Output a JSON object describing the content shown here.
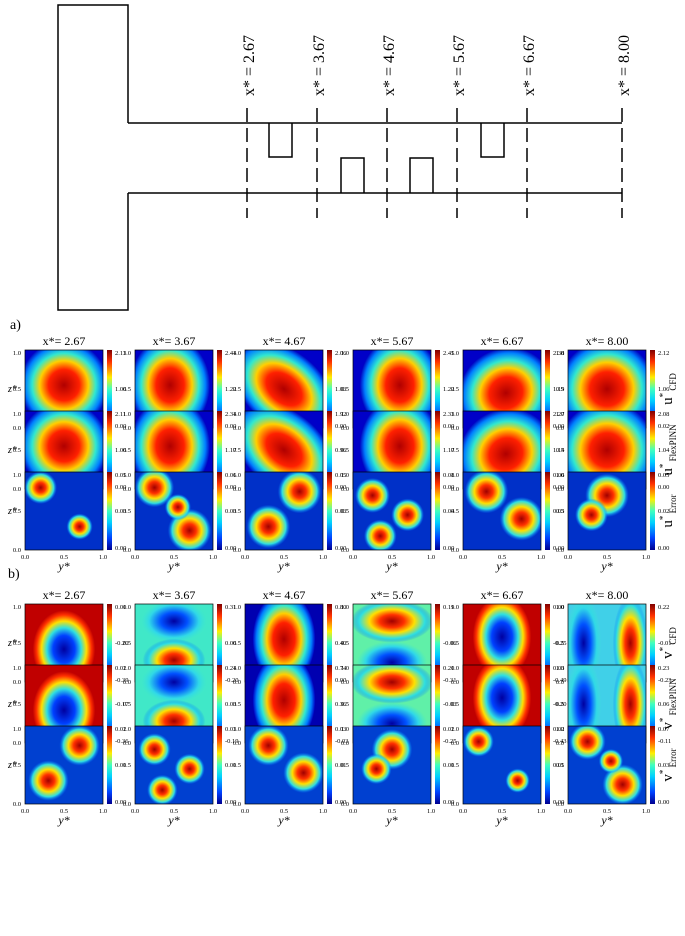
{
  "schematic": {
    "stations": [
      "x* = 2.67",
      "x* = 3.67",
      "x* = 4.67",
      "x* = 5.67",
      "x* = 6.67",
      "x* = 8.00"
    ]
  },
  "panels": {
    "a_label": "a)",
    "b_label": "b)"
  },
  "columns": [
    "x*= 2.67",
    "x*= 3.67",
    "x*= 4.67",
    "x*= 5.67",
    "x*= 6.67",
    "x*= 8.00"
  ],
  "axes": {
    "ylabel": "z*",
    "xlabel": "y*",
    "ticks": [
      "0.0",
      "0.5",
      "1.0"
    ]
  },
  "u_rows": [
    {
      "label": "u* CFD",
      "label_main": "u",
      "label_sub": "CFD",
      "scales": [
        [
          "2.13",
          "1.06",
          "0.00"
        ],
        [
          "2.44",
          "1.22",
          "0.00"
        ],
        [
          "2.06",
          "1.03",
          "0.00"
        ],
        [
          "2.45",
          "1.22",
          "0.00"
        ],
        [
          "2.38",
          "1.19",
          "0.00"
        ],
        [
          "2.12",
          "1.06",
          "0.02"
        ]
      ]
    },
    {
      "label": "u* FlexPINN",
      "label_main": "u",
      "label_sub": "FlexPINN",
      "scales": [
        [
          "2.11",
          "1.06",
          "0.00"
        ],
        [
          "2.34",
          "1.17",
          "0.00"
        ],
        [
          "1.92",
          "0.96",
          "0.00"
        ],
        [
          "2.33",
          "1.17",
          "0.00"
        ],
        [
          "2.27",
          "1.14",
          "0.00"
        ],
        [
          "2.08",
          "1.04",
          "0.00"
        ]
      ]
    },
    {
      "label": "u* Error",
      "label_main": "u",
      "label_sub": "Error",
      "scales": [
        [
          "0.05",
          "0.03",
          "0.00"
        ],
        [
          "0.06",
          "0.03",
          "0.00"
        ],
        [
          "0.05",
          "0.03",
          "0.00"
        ],
        [
          "0.08",
          "0.04",
          "0.00"
        ],
        [
          "0.06",
          "0.03",
          "0.00"
        ],
        [
          "0.05",
          "0.02",
          "0.00"
        ]
      ]
    }
  ],
  "v_rows": [
    {
      "label": "v* CFD",
      "label_main": "v",
      "label_sub": "CFD",
      "scales": [
        [
          "0.00",
          "-0.20",
          "-0.39"
        ],
        [
          "0.31",
          "0.06",
          "-0.20"
        ],
        [
          "0.80",
          "0.40",
          "0.00"
        ],
        [
          "0.19",
          "-0.06",
          "-0.31"
        ],
        [
          "0.00",
          "-0.25",
          "-0.49"
        ],
        [
          "0.22",
          "-0.01",
          "-0.23"
        ]
      ]
    },
    {
      "label": "v* FlexPINN",
      "label_main": "v",
      "label_sub": "FlexPINN",
      "scales": [
        [
          "0.02",
          "-0.17",
          "-0.36"
        ],
        [
          "0.24",
          "0.03",
          "-0.19"
        ],
        [
          "0.74",
          "0.36",
          "-0.03"
        ],
        [
          "0.20",
          "-0.03",
          "-0.25"
        ],
        [
          "0.03",
          "-0.20",
          "-0.43"
        ],
        [
          "0.23",
          "0.06",
          "-0.11"
        ]
      ]
    },
    {
      "label": "v* Error",
      "label_main": "v",
      "label_sub": "Error",
      "scales": [
        [
          "0.02",
          "0.01",
          "0.00"
        ],
        [
          "0.03",
          "0.01",
          "0.00"
        ],
        [
          "0.03",
          "0.01",
          "0.00"
        ],
        [
          "0.02",
          "0.01",
          "0.00"
        ],
        [
          "0.02",
          "0.01",
          "0.00"
        ],
        [
          "0.07",
          "0.03",
          "0.00"
        ]
      ]
    }
  ],
  "colormap": {
    "high": "#8b0000",
    "mid": "#22d3c5",
    "low": "#00008f"
  }
}
